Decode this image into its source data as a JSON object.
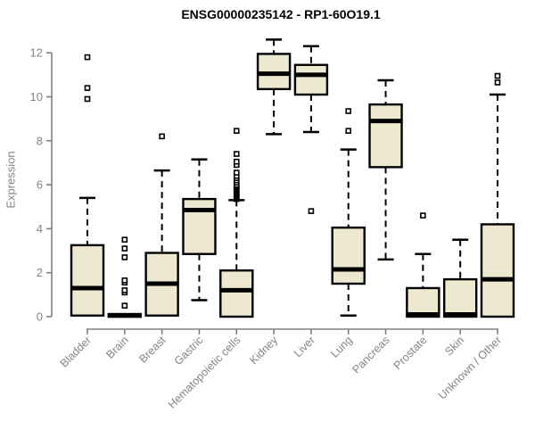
{
  "title": "ENSG00000235142 - RP1-60O19.1",
  "chart_data": {
    "type": "boxplot",
    "title": "ENSG00000235142 - RP1-60O19.1",
    "xlabel": "",
    "ylabel": "Expression",
    "ylim": [
      0,
      12.8
    ],
    "yticks": [
      0,
      2,
      4,
      6,
      8,
      10,
      12
    ],
    "grid": false,
    "categories": [
      "Bladder",
      "Brain",
      "Breast",
      "Gastric",
      "Hematopoietic cells",
      "Kidney",
      "Liver",
      "Lung",
      "Pancreas",
      "Prostate",
      "Skin",
      "Unknown / Other"
    ],
    "series": [
      {
        "name": "Bladder",
        "lo": 0.05,
        "q1": 0.05,
        "median": 1.3,
        "q3": 3.25,
        "hi": 5.4,
        "outliers": [
          9.9,
          10.4,
          11.8
        ]
      },
      {
        "name": "Brain",
        "lo": 0.0,
        "q1": 0.0,
        "median": 0.05,
        "q3": 0.12,
        "hi": 0.12,
        "outliers": [
          0.5,
          1.1,
          1.2,
          1.55,
          1.65,
          2.7,
          3.1,
          3.5
        ]
      },
      {
        "name": "Breast",
        "lo": 0.05,
        "q1": 0.05,
        "median": 1.5,
        "q3": 2.9,
        "hi": 6.65,
        "outliers": [
          8.2
        ]
      },
      {
        "name": "Gastric",
        "lo": 0.75,
        "q1": 2.85,
        "median": 4.85,
        "q3": 5.35,
        "hi": 7.15,
        "outliers": []
      },
      {
        "name": "Hematopoietic cells",
        "lo": 0.0,
        "q1": 0.0,
        "median": 1.2,
        "q3": 2.1,
        "hi": 5.3,
        "outliers": [
          5.35,
          5.4,
          5.45,
          5.5,
          5.55,
          5.6,
          5.65,
          5.7,
          5.75,
          5.8,
          5.85,
          5.9,
          5.95,
          6.0,
          6.1,
          6.2,
          6.3,
          6.4,
          6.55,
          6.9,
          7.05,
          7.4,
          8.45
        ]
      },
      {
        "name": "Kidney",
        "lo": 8.3,
        "q1": 10.35,
        "median": 11.05,
        "q3": 11.95,
        "hi": 12.6,
        "outliers": []
      },
      {
        "name": "Liver",
        "lo": 8.4,
        "q1": 10.1,
        "median": 11.0,
        "q3": 11.45,
        "hi": 12.3,
        "outliers": [
          4.8
        ]
      },
      {
        "name": "Lung",
        "lo": 0.05,
        "q1": 1.5,
        "median": 2.15,
        "q3": 4.05,
        "hi": 7.6,
        "outliers": [
          8.45,
          9.35
        ]
      },
      {
        "name": "Pancreas",
        "lo": 2.6,
        "q1": 6.8,
        "median": 8.9,
        "q3": 9.65,
        "hi": 10.75,
        "outliers": []
      },
      {
        "name": "Prostate",
        "lo": 0.0,
        "q1": 0.0,
        "median": 0.1,
        "q3": 1.3,
        "hi": 2.85,
        "outliers": [
          4.6
        ]
      },
      {
        "name": "Skin",
        "lo": 0.0,
        "q1": 0.0,
        "median": 0.1,
        "q3": 1.7,
        "hi": 3.5,
        "outliers": []
      },
      {
        "name": "Unknown / Other",
        "lo": 0.0,
        "q1": 0.0,
        "median": 1.7,
        "q3": 4.2,
        "hi": 10.1,
        "outliers": [
          10.65,
          10.95
        ]
      }
    ],
    "colors": {
      "box_fill": "#ede8d0",
      "box_border": "#000000",
      "median": "#000000",
      "whisker": "#000000",
      "axis": "#808080",
      "tick_label": "#848484",
      "title": "#000000",
      "background": "#ffffff"
    }
  }
}
